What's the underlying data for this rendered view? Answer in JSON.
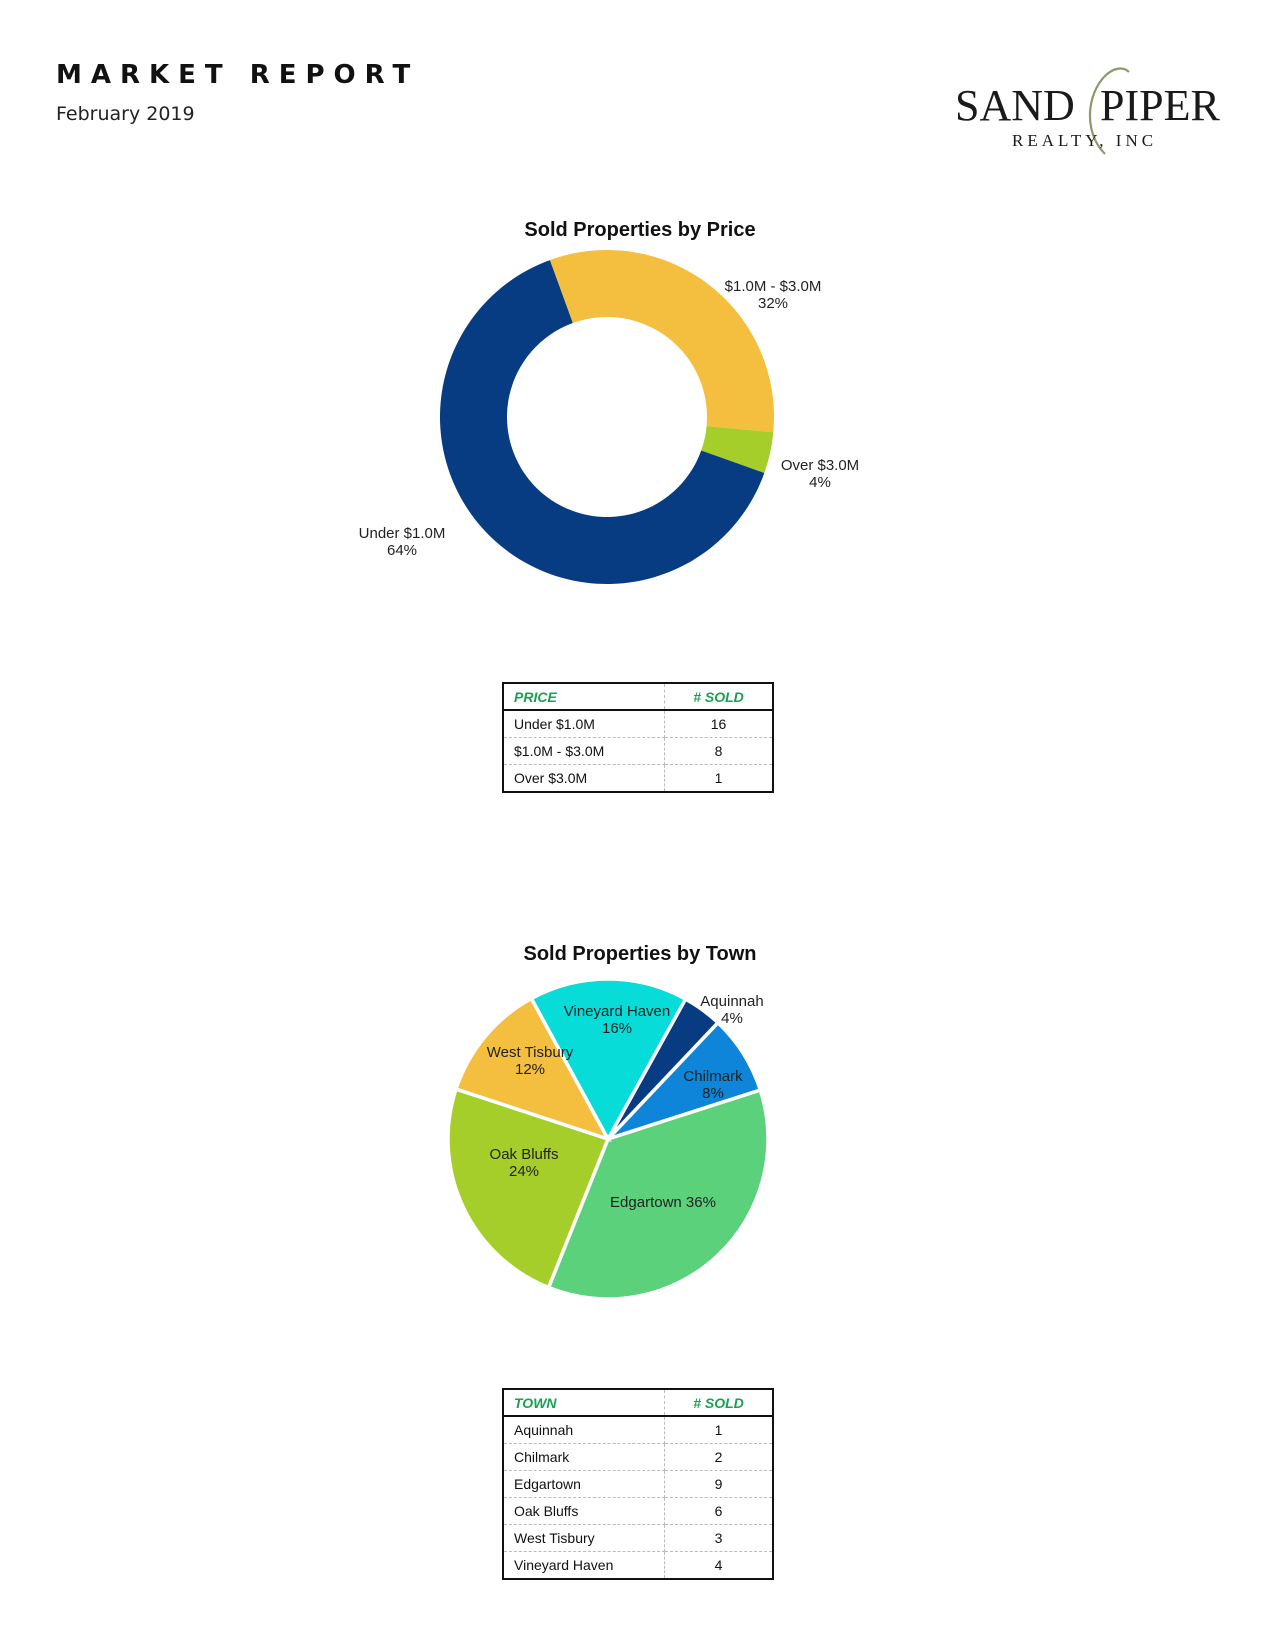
{
  "header": {
    "title": "MARKET REPORT",
    "date": "February 2019"
  },
  "logo": {
    "name": "SANDPIPER",
    "subtitle": "REALTY, INC",
    "colors": {
      "text": "#1a1a1a",
      "swash": "#8c9a6a"
    }
  },
  "chart_data": [
    {
      "type": "pie",
      "variant": "donut",
      "title": "Sold Properties by Price",
      "categories": [
        "$1.0M - $3.0M",
        "Over $3.0M",
        "Under $1.0M"
      ],
      "values": [
        8,
        1,
        16
      ],
      "percent_labels": [
        "32%",
        "4%",
        "64%"
      ],
      "colors": [
        "#f4bf3f",
        "#a6ce2a",
        "#073c82"
      ],
      "start_angle_deg": -20,
      "legend": "none (labels beside slices)"
    },
    {
      "type": "pie",
      "title": "Sold Properties by Town",
      "categories": [
        "Aquinnah",
        "Chilmark",
        "Edgartown",
        "Oak Bluffs",
        "West Tisbury",
        "Vineyard Haven"
      ],
      "values": [
        1,
        2,
        9,
        6,
        3,
        4
      ],
      "percent_labels": [
        "4%",
        "8%",
        "36%",
        "24%",
        "12%",
        "16%"
      ],
      "colors": [
        "#073c82",
        "#0e85d8",
        "#5ad17a",
        "#a6ce2a",
        "#f4bf3f",
        "#07dcd9"
      ],
      "start_angle_deg": 29,
      "legend": "none (labels on/beside slices)"
    }
  ],
  "tables": {
    "price": {
      "headers": [
        "PRICE",
        "# SOLD"
      ],
      "rows": [
        [
          "Under $1.0M",
          "16"
        ],
        [
          "$1.0M - $3.0M",
          "8"
        ],
        [
          "Over $3.0M",
          "1"
        ]
      ]
    },
    "town": {
      "headers": [
        "TOWN",
        "# SOLD"
      ],
      "rows": [
        [
          "Aquinnah",
          "1"
        ],
        [
          "Chilmark",
          "2"
        ],
        [
          "Edgartown",
          "9"
        ],
        [
          "Oak Bluffs",
          "6"
        ],
        [
          "West Tisbury",
          "3"
        ],
        [
          "Vineyard Haven",
          "4"
        ]
      ]
    }
  }
}
